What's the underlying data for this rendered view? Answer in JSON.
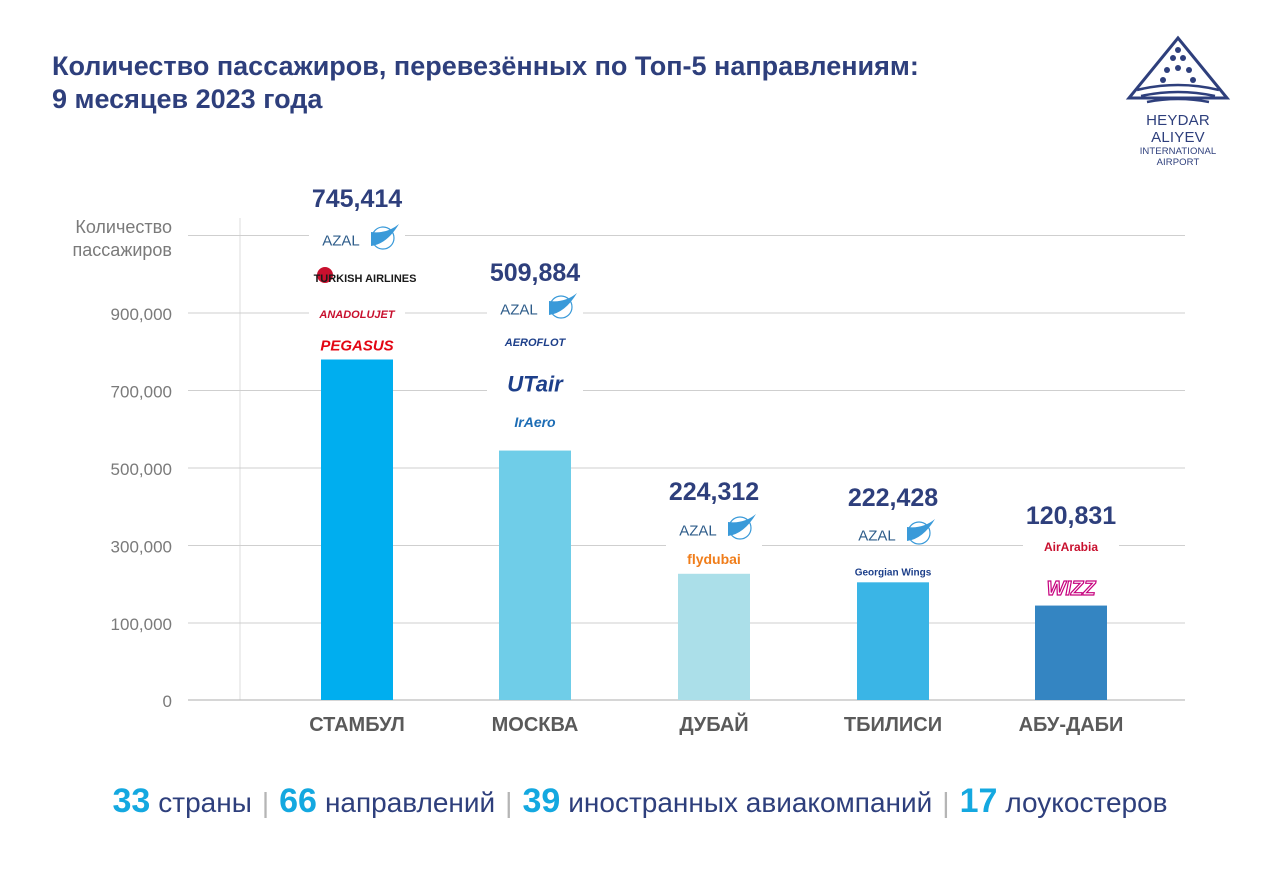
{
  "title": {
    "line1": "Количество пассажиров, перевезённых по Топ-5 направлениям:",
    "line2": "9 месяцев 2023 года"
  },
  "logo": {
    "line1": "HEYDAR ALIYEV",
    "line2": "INTERNATIONAL AIRPORT",
    "color": "#2e3f7c"
  },
  "chart_data": {
    "type": "bar",
    "ylabel": [
      "Количество",
      "пассажиров"
    ],
    "ylim": [
      0,
      1250000
    ],
    "yticks": [
      0,
      100000,
      300000,
      500000,
      700000,
      900000
    ],
    "ytick_labels": [
      "0",
      "100,000",
      "300,000",
      "500,000",
      "700,000",
      "900,000"
    ],
    "grid": true,
    "categories": [
      "СТАМБУЛ",
      "МОСКВА",
      "ДУБАЙ",
      "ТБИЛИСИ",
      "АБУ-ДАБИ"
    ],
    "values": [
      745414,
      509884,
      224312,
      222428,
      120831
    ],
    "data_labels": [
      "745,414",
      "509,884",
      "224,312",
      "222,428",
      "120,831"
    ],
    "bar_colors": [
      "#00aeef",
      "#6fcde8",
      "#abdfe9",
      "#3ab5e6",
      "#3485c2"
    ],
    "airlines": [
      [
        "AZAL",
        "TURKISH AIRLINES",
        "ANADOLUJET",
        "PEGASUS"
      ],
      [
        "AZAL",
        "AEROFLOT",
        "UTair",
        "IrAero"
      ],
      [
        "AZAL",
        "flydubai"
      ],
      [
        "AZAL",
        "Georgian Wings"
      ],
      [
        "AirArabia",
        "WIZZ"
      ]
    ]
  },
  "footer": [
    {
      "num": "33",
      "word": "страны"
    },
    {
      "num": "66",
      "word": "направлений"
    },
    {
      "num": "39",
      "word": "иностранных авиакомпаний"
    },
    {
      "num": "17",
      "word": "лоукостеров"
    }
  ],
  "footer_sep": "|",
  "colors": {
    "title": "#2e3f7c",
    "accent": "#14a8e0",
    "grid": "#cfcfcf",
    "axis_text": "#7a7a7a"
  }
}
